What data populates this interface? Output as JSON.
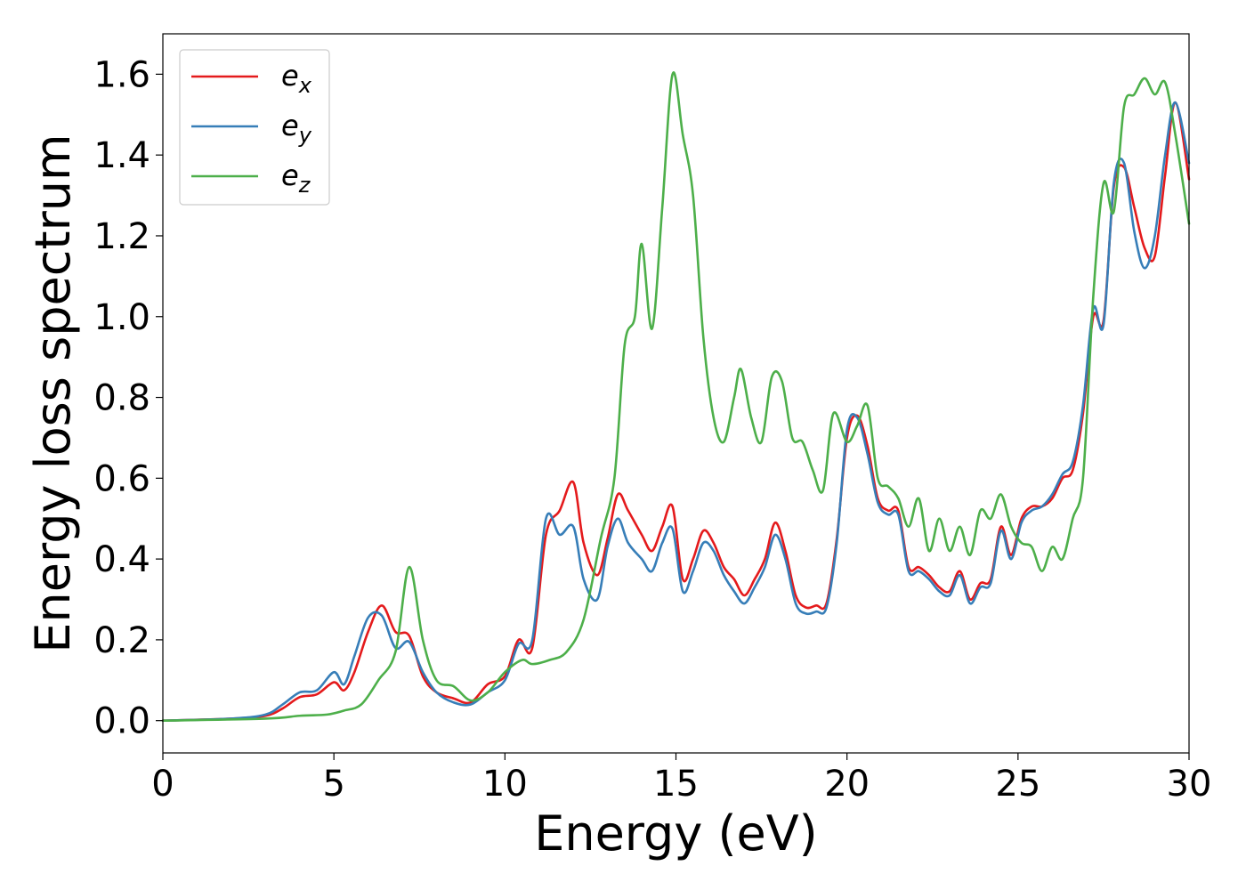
{
  "chart_data": {
    "type": "line",
    "xlabel": "Energy (eV)",
    "ylabel": "Energy loss spectrum",
    "xlim": [
      0,
      30
    ],
    "ylim": [
      -0.08,
      1.7
    ],
    "xticks": [
      0,
      5,
      10,
      15,
      20,
      25,
      30
    ],
    "xtick_labels": [
      "0",
      "5",
      "10",
      "15",
      "20",
      "25",
      "30"
    ],
    "yticks": [
      0.0,
      0.2,
      0.4,
      0.6,
      0.8,
      1.0,
      1.2,
      1.4,
      1.6
    ],
    "ytick_labels": [
      "0.0",
      "0.2",
      "0.4",
      "0.6",
      "0.8",
      "1.0",
      "1.2",
      "1.4",
      "1.6"
    ],
    "grid": false,
    "legend_position": "top-left",
    "series": [
      {
        "name": "e_x",
        "label_base": "e",
        "label_sub": "x",
        "color": "#e41a1c",
        "x": [
          0,
          2,
          3,
          3.5,
          4,
          4.5,
          5,
          5.3,
          5.6,
          6,
          6.4,
          6.8,
          7.2,
          7.6,
          8,
          8.5,
          9,
          9.5,
          10,
          10.4,
          10.8,
          11.2,
          11.6,
          12,
          12.3,
          12.7,
          13,
          13.3,
          13.6,
          14,
          14.3,
          14.6,
          14.9,
          15.2,
          15.5,
          15.8,
          16.1,
          16.4,
          16.7,
          17,
          17.3,
          17.6,
          17.9,
          18.2,
          18.5,
          18.8,
          19.1,
          19.4,
          19.7,
          20,
          20.3,
          20.6,
          20.9,
          21.2,
          21.5,
          21.8,
          22.1,
          22.4,
          22.7,
          23,
          23.3,
          23.6,
          23.9,
          24.2,
          24.5,
          24.8,
          25.1,
          25.4,
          25.7,
          26,
          26.3,
          26.6,
          26.9,
          27.2,
          27.5,
          27.8,
          28.1,
          28.4,
          28.7,
          29,
          29.3,
          29.6,
          30
        ],
        "y": [
          0.0,
          0.005,
          0.012,
          0.03,
          0.058,
          0.065,
          0.095,
          0.075,
          0.12,
          0.22,
          0.285,
          0.22,
          0.21,
          0.11,
          0.07,
          0.055,
          0.045,
          0.09,
          0.11,
          0.2,
          0.18,
          0.46,
          0.52,
          0.59,
          0.44,
          0.36,
          0.45,
          0.56,
          0.52,
          0.46,
          0.42,
          0.48,
          0.53,
          0.35,
          0.4,
          0.47,
          0.44,
          0.38,
          0.35,
          0.31,
          0.35,
          0.4,
          0.49,
          0.42,
          0.31,
          0.28,
          0.285,
          0.29,
          0.45,
          0.7,
          0.755,
          0.68,
          0.55,
          0.52,
          0.52,
          0.38,
          0.38,
          0.36,
          0.33,
          0.32,
          0.37,
          0.3,
          0.34,
          0.35,
          0.48,
          0.41,
          0.5,
          0.53,
          0.53,
          0.55,
          0.6,
          0.62,
          0.76,
          1.0,
          0.99,
          1.32,
          1.37,
          1.27,
          1.17,
          1.15,
          1.35,
          1.53,
          1.34
        ]
      },
      {
        "name": "e_y",
        "label_base": "e",
        "label_sub": "y",
        "color": "#377eb8",
        "x": [
          0,
          2,
          3,
          3.5,
          4,
          4.5,
          5,
          5.3,
          5.6,
          6,
          6.4,
          6.8,
          7.2,
          7.6,
          8,
          8.5,
          9,
          9.5,
          10,
          10.4,
          10.8,
          11.2,
          11.6,
          12,
          12.3,
          12.7,
          13,
          13.3,
          13.6,
          14,
          14.3,
          14.6,
          14.9,
          15.2,
          15.5,
          15.8,
          16.1,
          16.4,
          16.7,
          17,
          17.3,
          17.6,
          17.9,
          18.2,
          18.5,
          18.8,
          19.1,
          19.4,
          19.7,
          20,
          20.3,
          20.6,
          20.9,
          21.2,
          21.5,
          21.8,
          22.1,
          22.4,
          22.7,
          23,
          23.3,
          23.6,
          23.9,
          24.2,
          24.5,
          24.8,
          25.1,
          25.4,
          25.7,
          26,
          26.3,
          26.6,
          26.9,
          27.2,
          27.5,
          27.8,
          28.1,
          28.4,
          28.7,
          29,
          29.3,
          29.6,
          30
        ],
        "y": [
          0.0,
          0.005,
          0.015,
          0.04,
          0.07,
          0.075,
          0.12,
          0.09,
          0.16,
          0.255,
          0.26,
          0.18,
          0.195,
          0.12,
          0.07,
          0.045,
          0.04,
          0.07,
          0.1,
          0.19,
          0.2,
          0.5,
          0.46,
          0.48,
          0.35,
          0.3,
          0.43,
          0.5,
          0.44,
          0.4,
          0.37,
          0.44,
          0.475,
          0.32,
          0.37,
          0.44,
          0.42,
          0.36,
          0.32,
          0.29,
          0.33,
          0.38,
          0.46,
          0.4,
          0.29,
          0.265,
          0.27,
          0.28,
          0.44,
          0.72,
          0.75,
          0.66,
          0.54,
          0.51,
          0.51,
          0.37,
          0.37,
          0.35,
          0.32,
          0.31,
          0.36,
          0.29,
          0.33,
          0.34,
          0.47,
          0.4,
          0.49,
          0.52,
          0.53,
          0.56,
          0.61,
          0.64,
          0.78,
          1.02,
          0.98,
          1.33,
          1.38,
          1.21,
          1.12,
          1.2,
          1.4,
          1.53,
          1.38
        ]
      },
      {
        "name": "e_z",
        "label_base": "e",
        "label_sub": "z",
        "color": "#4daf4a",
        "x": [
          0,
          3,
          4,
          4.8,
          5.3,
          5.8,
          6.3,
          6.8,
          7.2,
          7.6,
          8,
          8.5,
          9,
          9.5,
          10,
          10.5,
          10.8,
          11.3,
          11.8,
          12.3,
          12.8,
          13.2,
          13.5,
          13.8,
          14,
          14.3,
          14.6,
          14.9,
          15.2,
          15.5,
          15.8,
          16.1,
          16.4,
          16.7,
          16.9,
          17.2,
          17.5,
          17.8,
          18.1,
          18.4,
          18.7,
          19,
          19.3,
          19.6,
          20,
          20.3,
          20.6,
          20.9,
          21.2,
          21.5,
          21.8,
          22.1,
          22.4,
          22.7,
          23,
          23.3,
          23.6,
          23.9,
          24.2,
          24.5,
          24.8,
          25.1,
          25.4,
          25.7,
          26,
          26.3,
          26.6,
          26.9,
          27.2,
          27.5,
          27.8,
          28.1,
          28.4,
          28.7,
          29,
          29.3,
          29.6,
          30
        ],
        "y": [
          0.0,
          0.005,
          0.012,
          0.015,
          0.025,
          0.04,
          0.1,
          0.17,
          0.38,
          0.2,
          0.1,
          0.085,
          0.05,
          0.07,
          0.12,
          0.15,
          0.14,
          0.15,
          0.17,
          0.25,
          0.45,
          0.6,
          0.93,
          1.0,
          1.18,
          0.97,
          1.27,
          1.6,
          1.45,
          1.3,
          0.95,
          0.75,
          0.69,
          0.8,
          0.87,
          0.75,
          0.69,
          0.85,
          0.84,
          0.7,
          0.69,
          0.62,
          0.57,
          0.76,
          0.69,
          0.73,
          0.78,
          0.6,
          0.58,
          0.55,
          0.48,
          0.55,
          0.42,
          0.5,
          0.42,
          0.48,
          0.41,
          0.52,
          0.5,
          0.56,
          0.48,
          0.44,
          0.43,
          0.37,
          0.43,
          0.4,
          0.5,
          0.6,
          1.05,
          1.33,
          1.26,
          1.52,
          1.55,
          1.59,
          1.55,
          1.58,
          1.45,
          1.23
        ]
      }
    ]
  }
}
